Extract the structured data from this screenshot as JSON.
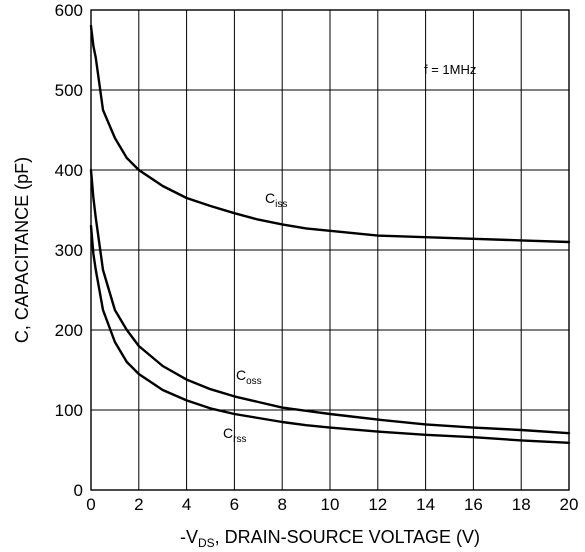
{
  "chart_data": {
    "type": "line",
    "xlabel": {
      "prefix": "-V",
      "sub": "DS",
      "rest": ", DRAIN-SOURCE VOLTAGE (V)"
    },
    "ylabel": "C, CAPACITANCE (pF)",
    "xlim": [
      0,
      20
    ],
    "ylim": [
      0,
      600
    ],
    "xticks": [
      0,
      2,
      4,
      6,
      8,
      10,
      12,
      14,
      16,
      18,
      20
    ],
    "yticks": [
      0,
      100,
      200,
      300,
      400,
      500,
      600
    ],
    "grid": true,
    "annotation": "f = 1MHz",
    "series": [
      {
        "name": "C_iss",
        "label": {
          "base": "C",
          "sub": "iss"
        },
        "x": [
          0,
          0.1,
          0.2,
          0.5,
          1,
          1.5,
          2,
          3,
          4,
          5,
          6,
          7,
          8,
          9,
          10,
          12,
          14,
          16,
          18,
          20
        ],
        "y": [
          580,
          555,
          540,
          475,
          440,
          415,
          400,
          380,
          365,
          355,
          346,
          338,
          332,
          327,
          324,
          318,
          316,
          314,
          312,
          310
        ]
      },
      {
        "name": "C_oss",
        "label": {
          "base": "C",
          "sub": "oss"
        },
        "x": [
          0,
          0.1,
          0.2,
          0.5,
          1,
          1.5,
          2,
          3,
          4,
          5,
          6,
          7,
          8,
          9,
          10,
          12,
          14,
          16,
          18,
          20
        ],
        "y": [
          400,
          365,
          340,
          275,
          225,
          200,
          180,
          155,
          138,
          126,
          117,
          110,
          103,
          99,
          95,
          88,
          82,
          78,
          75,
          71
        ]
      },
      {
        "name": "C_rss",
        "label": {
          "base": "C",
          "sub": "rss"
        },
        "x": [
          0,
          0.1,
          0.2,
          0.5,
          1,
          1.5,
          2,
          3,
          4,
          5,
          6,
          7,
          8,
          9,
          10,
          12,
          14,
          16,
          18,
          20
        ],
        "y": [
          330,
          295,
          275,
          225,
          185,
          160,
          145,
          125,
          112,
          102,
          95,
          90,
          85,
          81,
          78,
          73,
          69,
          66,
          62,
          59
        ]
      }
    ]
  }
}
